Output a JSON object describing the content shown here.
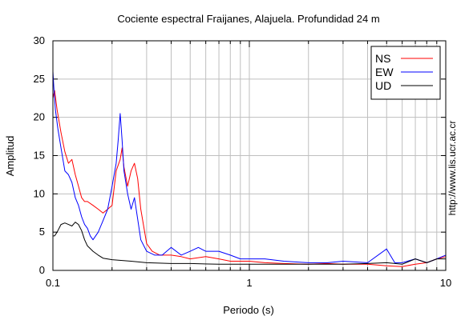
{
  "chart_data": {
    "type": "line",
    "title": "Cociente espectral Fraijanes, Alajuela. Profundidad 24 m",
    "xlabel": "Periodo (s)",
    "ylabel": "Amplitud",
    "xscale": "log",
    "xlim": [
      0.1,
      10
    ],
    "ylim": [
      0,
      30
    ],
    "xticks": [
      "0.1",
      "1",
      "10"
    ],
    "yticks": [
      "0",
      "5",
      "10",
      "15",
      "20",
      "25",
      "30"
    ],
    "grid": true,
    "legend": "top-right",
    "watermark": "http://www.lis.ucr.ac.cr",
    "series": [
      {
        "name": "NS",
        "color": "#ff0000",
        "x": [
          0.1,
          0.102,
          0.105,
          0.11,
          0.115,
          0.12,
          0.125,
          0.13,
          0.135,
          0.14,
          0.145,
          0.15,
          0.16,
          0.17,
          0.18,
          0.19,
          0.2,
          0.21,
          0.22,
          0.225,
          0.23,
          0.24,
          0.25,
          0.26,
          0.27,
          0.28,
          0.3,
          0.32,
          0.35,
          0.4,
          0.45,
          0.5,
          0.6,
          0.7,
          0.8,
          1.0,
          1.2,
          1.5,
          2.0,
          2.5,
          3.0,
          4.0,
          5.0,
          6.0,
          7.0,
          8.0,
          9.0,
          10.0
        ],
        "y": [
          22.5,
          23.5,
          21.0,
          18.0,
          15.5,
          14.0,
          14.5,
          12.5,
          11.0,
          9.5,
          9.0,
          9.0,
          8.5,
          8.0,
          7.5,
          8.0,
          8.5,
          13.0,
          14.5,
          16.0,
          13.5,
          11.0,
          13.0,
          14.0,
          12.0,
          8.0,
          3.5,
          2.5,
          2.0,
          2.0,
          1.8,
          1.5,
          1.8,
          1.5,
          1.2,
          1.2,
          1.0,
          0.9,
          0.8,
          0.9,
          0.8,
          0.8,
          0.6,
          0.5,
          0.8,
          1.0,
          1.5,
          1.8
        ]
      },
      {
        "name": "EW",
        "color": "#0000ff",
        "x": [
          0.1,
          0.101,
          0.103,
          0.106,
          0.11,
          0.115,
          0.12,
          0.125,
          0.13,
          0.135,
          0.14,
          0.145,
          0.15,
          0.155,
          0.16,
          0.17,
          0.18,
          0.19,
          0.2,
          0.21,
          0.215,
          0.22,
          0.225,
          0.23,
          0.24,
          0.25,
          0.26,
          0.28,
          0.3,
          0.33,
          0.36,
          0.4,
          0.45,
          0.5,
          0.55,
          0.6,
          0.7,
          0.8,
          0.9,
          1.0,
          1.2,
          1.5,
          2.0,
          2.5,
          3.0,
          4.0,
          5.0,
          5.5,
          6.0,
          7.0,
          8.0,
          9.0,
          10.0
        ],
        "y": [
          26.0,
          24.0,
          21.0,
          18.5,
          16.0,
          13.0,
          12.5,
          11.5,
          9.5,
          8.5,
          7.0,
          6.0,
          5.5,
          4.5,
          4.0,
          5.0,
          6.5,
          8.0,
          11.0,
          14.0,
          17.0,
          20.5,
          17.0,
          13.0,
          10.0,
          8.0,
          9.5,
          4.0,
          2.5,
          2.0,
          2.0,
          3.0,
          2.0,
          2.5,
          3.0,
          2.5,
          2.5,
          2.0,
          1.5,
          1.5,
          1.5,
          1.2,
          1.0,
          1.0,
          1.2,
          1.0,
          2.8,
          1.0,
          1.0,
          1.5,
          1.0,
          1.5,
          2.0
        ]
      },
      {
        "name": "UD",
        "color": "#000000",
        "x": [
          0.1,
          0.102,
          0.105,
          0.11,
          0.115,
          0.12,
          0.125,
          0.13,
          0.135,
          0.14,
          0.145,
          0.15,
          0.16,
          0.17,
          0.18,
          0.2,
          0.25,
          0.3,
          0.4,
          0.5,
          0.7,
          1.0,
          1.5,
          2.0,
          3.0,
          4.0,
          5.0,
          6.0,
          7.0,
          8.0,
          9.0,
          10.0
        ],
        "y": [
          4.5,
          4.5,
          5.0,
          6.0,
          6.2,
          6.0,
          5.8,
          6.3,
          6.0,
          5.2,
          4.0,
          3.2,
          2.5,
          2.0,
          1.6,
          1.4,
          1.2,
          1.0,
          0.9,
          0.9,
          0.8,
          0.8,
          0.8,
          0.8,
          0.8,
          0.9,
          1.0,
          0.8,
          1.5,
          1.0,
          1.5,
          1.5
        ]
      }
    ]
  }
}
